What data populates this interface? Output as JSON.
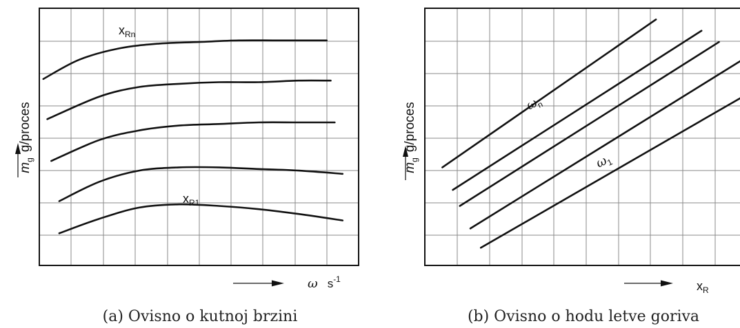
{
  "chart_data": [
    {
      "type": "line",
      "caption": "(a) Ovisno o kutnoj brzini",
      "ylabel": {
        "symbol": "m",
        "sub": "g",
        "unit": "g/proces"
      },
      "xlabel": {
        "symbol": "ω",
        "unit": "s",
        "sup": "-1"
      },
      "grid": true,
      "xlim": [
        0,
        8
      ],
      "ylim": [
        0,
        8
      ],
      "series": [
        {
          "x": [
            0.5,
            1.5,
            2.5,
            3.5,
            4.5,
            5.5,
            6.5,
            7.6
          ],
          "y": [
            1.0,
            1.45,
            1.8,
            1.9,
            1.85,
            1.75,
            1.6,
            1.4
          ]
        },
        {
          "x": [
            0.5,
            1.5,
            2.5,
            3.5,
            4.5,
            5.5,
            6.5,
            7.6
          ],
          "y": [
            2.0,
            2.6,
            2.95,
            3.05,
            3.05,
            3.0,
            2.95,
            2.85
          ]
        },
        {
          "x": [
            0.3,
            1.5,
            2.5,
            3.5,
            4.5,
            5.5,
            6.5,
            7.4
          ],
          "y": [
            3.25,
            3.9,
            4.2,
            4.35,
            4.4,
            4.45,
            4.45,
            4.45
          ]
        },
        {
          "x": [
            0.2,
            1.5,
            2.5,
            3.5,
            4.5,
            5.5,
            6.5,
            7.3
          ],
          "y": [
            4.55,
            5.25,
            5.55,
            5.65,
            5.7,
            5.7,
            5.75,
            5.75
          ]
        },
        {
          "x": [
            0.1,
            1.0,
            2.0,
            3.0,
            4.0,
            5.0,
            6.0,
            7.2
          ],
          "y": [
            5.8,
            6.4,
            6.75,
            6.9,
            6.95,
            7.0,
            7.0,
            7.0
          ]
        }
      ],
      "annotations": [
        {
          "text": "x",
          "sub": "Rn",
          "at_series": 4
        },
        {
          "text": "x",
          "sub": "R1",
          "at_series": 0
        }
      ]
    },
    {
      "type": "line",
      "caption": "(b) Ovisno o hodu letve goriva",
      "ylabel": {
        "symbol": "m",
        "sub": "g",
        "unit": "g/proces"
      },
      "xlabel": {
        "symbol": "x",
        "sub": "R"
      },
      "grid": true,
      "xlim": [
        0,
        9
      ],
      "ylim": [
        0,
        8
      ],
      "series": [
        {
          "x": [
            0.5,
            6.6
          ],
          "y": [
            3.05,
            7.65
          ]
        },
        {
          "x": [
            0.8,
            7.9
          ],
          "y": [
            2.35,
            7.3
          ]
        },
        {
          "x": [
            1.0,
            8.4
          ],
          "y": [
            1.85,
            6.95
          ]
        },
        {
          "x": [
            1.3,
            9.0
          ],
          "y": [
            1.15,
            6.35
          ]
        },
        {
          "x": [
            1.6,
            9.4
          ],
          "y": [
            0.55,
            5.45
          ]
        }
      ],
      "annotations": [
        {
          "text": "ω",
          "sub": "n",
          "at_series": 0
        },
        {
          "text": "ω",
          "sub": "1",
          "at_series": 4
        }
      ]
    }
  ]
}
